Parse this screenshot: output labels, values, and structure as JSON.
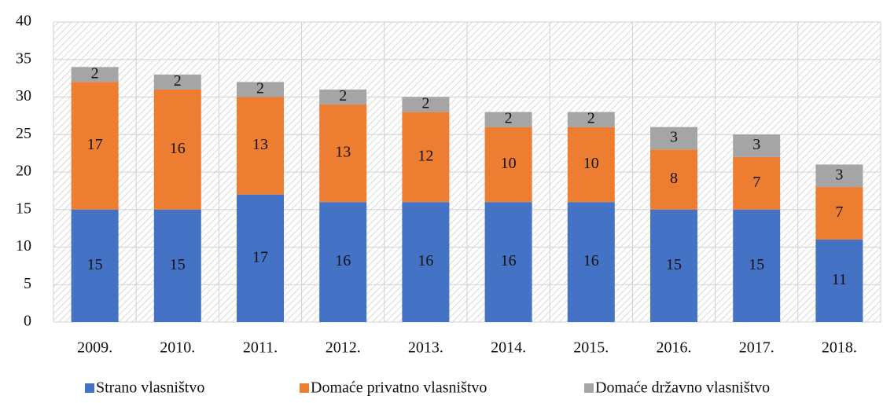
{
  "chart_data": {
    "type": "stacked-bar",
    "categories": [
      "2009.",
      "2010.",
      "2011.",
      "2012.",
      "2013.",
      "2014.",
      "2015.",
      "2016.",
      "2017.",
      "2018."
    ],
    "series": [
      {
        "name": "Strano vlasništvo",
        "color": "#4472c4",
        "values": [
          15,
          15,
          17,
          16,
          16,
          16,
          16,
          15,
          15,
          11
        ]
      },
      {
        "name": "Domaće privatno vlasništvo",
        "color": "#ed7d31",
        "values": [
          17,
          16,
          13,
          13,
          12,
          10,
          10,
          8,
          7,
          7
        ]
      },
      {
        "name": "Domaće državno vlasništvo",
        "color": "#a5a5a5",
        "values": [
          2,
          2,
          2,
          2,
          2,
          2,
          2,
          3,
          3,
          3
        ]
      }
    ],
    "ylim": [
      0,
      40
    ],
    "yticks": [
      0,
      5,
      10,
      15,
      20,
      25,
      30,
      35,
      40
    ],
    "grid": true,
    "legend": "bottom"
  }
}
